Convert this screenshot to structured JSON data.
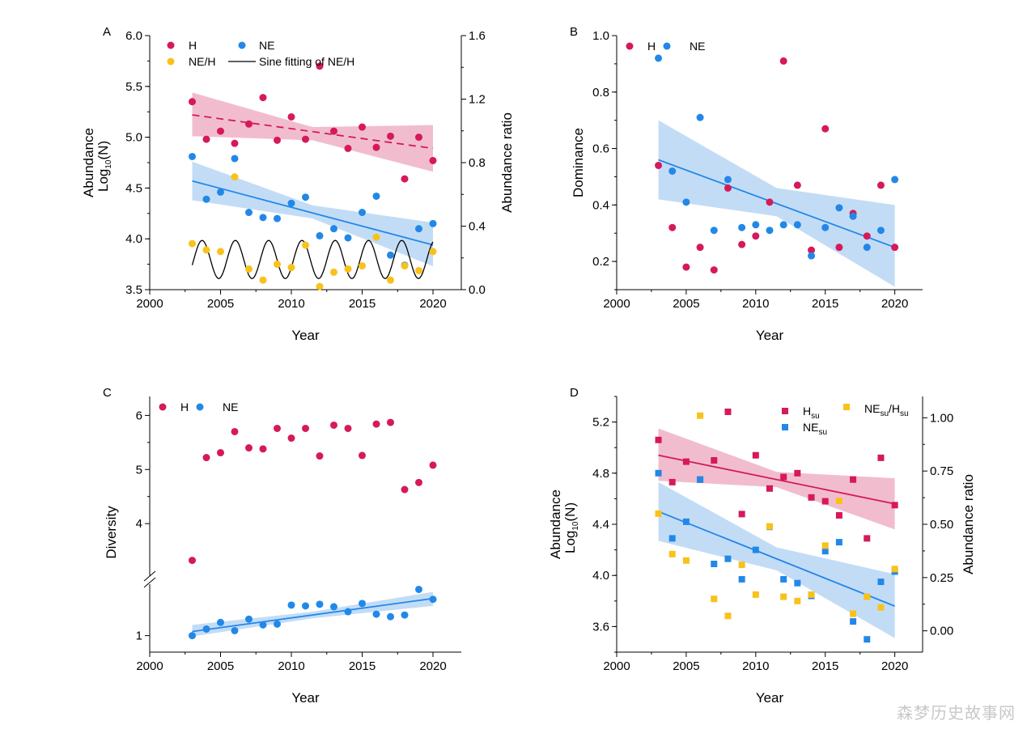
{
  "colors": {
    "H": "#d6195b",
    "NE": "#2288e8",
    "ratio": "#f8c21a",
    "H_band": "#eeb1c6",
    "NE_band": "#b8d6f4",
    "sine": "#000000"
  },
  "watermark": "森梦历史故事网",
  "chart_data": [
    {
      "id": "A",
      "type": "scatter",
      "panel_label": "A",
      "xlabel": "Year",
      "ylabel": "Abundance",
      "ylabel2": "Log10(N)",
      "y2label": "Abundance ratio",
      "xlim": [
        2000,
        2022
      ],
      "ylim": [
        3.5,
        6.0
      ],
      "y2lim": [
        0.0,
        1.6
      ],
      "xticks": [
        2000,
        2005,
        2010,
        2015,
        2020
      ],
      "yticks": [
        "3.5",
        "4.0",
        "4.5",
        "5.0",
        "5.5",
        "6.0"
      ],
      "y2ticks": [
        "0.0",
        "0.4",
        "0.8",
        "1.2",
        "1.6"
      ],
      "legend": [
        "H",
        "NE",
        "NE/H",
        "Sine fitting of NE/H"
      ],
      "series": [
        {
          "name": "H",
          "axis": "left",
          "marker": "circle",
          "color": "#d6195b",
          "x": [
            2003,
            2004,
            2005,
            2006,
            2007,
            2008,
            2009,
            2010,
            2011,
            2012,
            2013,
            2014,
            2015,
            2016,
            2017,
            2018,
            2019,
            2020
          ],
          "y": [
            5.35,
            4.98,
            5.06,
            4.94,
            5.13,
            5.39,
            4.97,
            5.2,
            4.98,
            5.7,
            5.06,
            4.89,
            5.1,
            4.9,
            5.01,
            4.59,
            5.0,
            4.77
          ]
        },
        {
          "name": "NE",
          "axis": "left",
          "marker": "circle",
          "color": "#2288e8",
          "x": [
            2003,
            2004,
            2005,
            2006,
            2007,
            2008,
            2009,
            2010,
            2011,
            2012,
            2013,
            2014,
            2015,
            2016,
            2017,
            2018,
            2019,
            2020
          ],
          "y": [
            4.81,
            4.39,
            4.46,
            4.79,
            4.26,
            4.21,
            4.2,
            4.35,
            4.41,
            4.03,
            4.1,
            4.01,
            4.26,
            4.42,
            3.84,
            3.74,
            4.1,
            4.15
          ]
        },
        {
          "name": "NE/H",
          "axis": "right",
          "marker": "circle",
          "color": "#f8c21a",
          "x": [
            2003,
            2004,
            2005,
            2006,
            2007,
            2008,
            2009,
            2010,
            2011,
            2012,
            2013,
            2014,
            2015,
            2016,
            2017,
            2018,
            2019,
            2020
          ],
          "y": [
            0.29,
            0.25,
            0.24,
            0.71,
            0.13,
            0.06,
            0.16,
            0.14,
            0.28,
            0.02,
            0.11,
            0.13,
            0.15,
            0.33,
            0.06,
            0.15,
            0.12,
            0.24
          ]
        }
      ],
      "fits": [
        {
          "name": "H",
          "axis": "left",
          "style": "dashed",
          "color": "#d6195b",
          "x": [
            2003,
            2020
          ],
          "y": [
            5.22,
            4.89
          ],
          "band": {
            "x": [
              2003,
              2011.5,
              2020
            ],
            "lower": [
              5.01,
              4.97,
              4.66
            ],
            "upper": [
              5.44,
              5.1,
              5.12
            ]
          }
        },
        {
          "name": "NE",
          "axis": "left",
          "style": "solid",
          "color": "#2288e8",
          "x": [
            2003,
            2020
          ],
          "y": [
            4.57,
            3.94
          ],
          "band": {
            "x": [
              2003,
              2011.5,
              2020
            ],
            "lower": [
              4.38,
              4.2,
              3.73
            ],
            "upper": [
              4.76,
              4.33,
              4.16
            ]
          }
        },
        {
          "name": "Sine fitting of NE/H",
          "axis": "right",
          "style": "solid",
          "color": "#000000",
          "model": "y = 0.19 + 0.12*sin(2*pi*(x-2003)/2.35 - 0.3)",
          "x": [
            2003,
            2020
          ]
        }
      ]
    },
    {
      "id": "B",
      "type": "scatter",
      "panel_label": "B",
      "xlabel": "Year",
      "ylabel": "Dominance",
      "xlim": [
        2000,
        2022
      ],
      "ylim": [
        0.1,
        1.0
      ],
      "xticks": [
        2000,
        2005,
        2010,
        2015,
        2020
      ],
      "yticks": [
        "0.2",
        "0.4",
        "0.6",
        "0.8",
        "1.0"
      ],
      "legend": [
        "H",
        "NE"
      ],
      "series": [
        {
          "name": "H",
          "marker": "circle",
          "color": "#d6195b",
          "x": [
            2003,
            2004,
            2005,
            2006,
            2007,
            2008,
            2009,
            2010,
            2011,
            2012,
            2013,
            2014,
            2015,
            2016,
            2017,
            2018,
            2019,
            2020
          ],
          "y": [
            0.54,
            0.32,
            0.18,
            0.25,
            0.17,
            0.46,
            0.26,
            0.29,
            0.41,
            0.91,
            0.47,
            0.24,
            0.67,
            0.25,
            0.37,
            0.29,
            0.47,
            0.25
          ]
        },
        {
          "name": "NE",
          "marker": "circle",
          "color": "#2288e8",
          "x": [
            2003,
            2004,
            2005,
            2006,
            2007,
            2008,
            2009,
            2010,
            2011,
            2012,
            2013,
            2014,
            2015,
            2016,
            2017,
            2018,
            2019,
            2020
          ],
          "y": [
            0.92,
            0.52,
            0.41,
            0.71,
            0.31,
            0.49,
            0.32,
            0.33,
            0.31,
            0.33,
            0.33,
            0.22,
            0.32,
            0.39,
            0.36,
            0.25,
            0.31,
            0.49
          ]
        }
      ],
      "fits": [
        {
          "name": "NE",
          "style": "solid",
          "color": "#2288e8",
          "x": [
            2003,
            2020
          ],
          "y": [
            0.56,
            0.25
          ],
          "band": {
            "x": [
              2003,
              2011.5,
              2020
            ],
            "lower": [
              0.42,
              0.36,
              0.11
            ],
            "upper": [
              0.7,
              0.46,
              0.4
            ]
          }
        }
      ]
    },
    {
      "id": "C",
      "type": "scatter",
      "panel_label": "C",
      "xlabel": "Year",
      "ylabel": "Diversity",
      "y_axis_break": true,
      "xlim": [
        2000,
        2022
      ],
      "xticks": [
        2000,
        2005,
        2010,
        2015,
        2020
      ],
      "yticks": [
        "1",
        "4",
        "5",
        "6"
      ],
      "legend": [
        "H",
        "NE"
      ],
      "series": [
        {
          "name": "H",
          "marker": "circle",
          "color": "#d6195b",
          "x": [
            2003,
            2004,
            2005,
            2006,
            2007,
            2008,
            2009,
            2010,
            2011,
            2012,
            2013,
            2014,
            2015,
            2016,
            2017,
            2018,
            2019,
            2020
          ],
          "y": [
            3.32,
            5.22,
            5.31,
            5.7,
            5.4,
            5.38,
            5.76,
            5.58,
            5.76,
            5.25,
            5.82,
            5.76,
            5.26,
            5.84,
            5.87,
            4.63,
            4.76,
            5.08
          ]
        },
        {
          "name": "NE",
          "marker": "circle",
          "color": "#2288e8",
          "x": [
            2003,
            2004,
            2005,
            2006,
            2007,
            2008,
            2009,
            2010,
            2011,
            2012,
            2013,
            2014,
            2015,
            2016,
            2017,
            2018,
            2019,
            2020
          ],
          "y": [
            1.0,
            1.08,
            1.16,
            1.06,
            1.2,
            1.13,
            1.14,
            1.37,
            1.36,
            1.38,
            1.35,
            1.29,
            1.39,
            1.26,
            1.23,
            1.25,
            1.56,
            1.44
          ]
        }
      ],
      "fits": [
        {
          "name": "NE",
          "style": "solid",
          "color": "#2288e8",
          "x": [
            2003,
            2020
          ],
          "y": [
            1.05,
            1.45
          ],
          "band": {
            "x": [
              2003,
              2011.5,
              2020
            ],
            "lower": [
              0.99,
              1.21,
              1.36
            ],
            "upper": [
              1.13,
              1.29,
              1.53
            ]
          }
        }
      ]
    },
    {
      "id": "D",
      "type": "scatter",
      "panel_label": "D",
      "xlabel": "Year",
      "ylabel": "Abundance",
      "ylabel2": "Log10(N)",
      "y2label": "Abundance ratio",
      "xlim": [
        2000,
        2022
      ],
      "ylim": [
        3.4,
        5.4
      ],
      "y2lim": [
        -0.1,
        1.1
      ],
      "xticks": [
        2000,
        2005,
        2010,
        2015,
        2020
      ],
      "yticks": [
        "3.6",
        "4.0",
        "4.4",
        "4.8",
        "5.2"
      ],
      "y2ticks": [
        "0.00",
        "0.25",
        "0.50",
        "0.75",
        "1.00"
      ],
      "legend": [
        "Hsu",
        "NEsu/Hsu",
        "NEsu"
      ],
      "series": [
        {
          "name": "Hsu",
          "axis": "left",
          "marker": "square",
          "color": "#d6195b",
          "x": [
            2003,
            2004,
            2005,
            2006,
            2007,
            2008,
            2009,
            2010,
            2011,
            2012,
            2013,
            2014,
            2015,
            2016,
            2017,
            2018,
            2019,
            2020
          ],
          "y": [
            5.06,
            4.73,
            4.89,
            4.75,
            4.9,
            5.28,
            4.48,
            4.94,
            4.68,
            4.77,
            4.8,
            4.61,
            4.58,
            4.47,
            4.75,
            4.29,
            4.92,
            4.55
          ]
        },
        {
          "name": "NEsu",
          "axis": "left",
          "marker": "square",
          "color": "#2288e8",
          "x": [
            2003,
            2004,
            2005,
            2006,
            2007,
            2008,
            2009,
            2010,
            2011,
            2012,
            2013,
            2014,
            2015,
            2016,
            2017,
            2018,
            2019,
            2020
          ],
          "y": [
            4.8,
            4.29,
            4.42,
            4.75,
            4.09,
            4.13,
            3.97,
            4.2,
            4.38,
            3.97,
            3.94,
            3.84,
            4.19,
            4.26,
            3.64,
            3.5,
            3.95,
            4.03
          ]
        },
        {
          "name": "NEsu/Hsu",
          "axis": "right",
          "marker": "square",
          "color": "#f8c21a",
          "x": [
            2003,
            2004,
            2005,
            2006,
            2007,
            2008,
            2009,
            2010,
            2011,
            2012,
            2013,
            2014,
            2015,
            2016,
            2017,
            2018,
            2019,
            2020
          ],
          "y": [
            0.55,
            0.36,
            0.33,
            1.01,
            0.15,
            0.07,
            0.31,
            0.17,
            0.49,
            0.16,
            0.14,
            0.17,
            0.4,
            0.61,
            0.08,
            0.16,
            0.11,
            0.29
          ]
        }
      ],
      "fits": [
        {
          "name": "Hsu",
          "axis": "left",
          "style": "solid",
          "color": "#d6195b",
          "x": [
            2003,
            2020
          ],
          "y": [
            4.94,
            4.56
          ],
          "band": {
            "x": [
              2003,
              2011.5,
              2020
            ],
            "lower": [
              4.74,
              4.69,
              4.36
            ],
            "upper": [
              5.15,
              4.81,
              4.76
            ]
          }
        },
        {
          "name": "NEsu",
          "axis": "left",
          "style": "solid",
          "color": "#2288e8",
          "x": [
            2003,
            2020
          ],
          "y": [
            4.5,
            3.76
          ],
          "band": {
            "x": [
              2003,
              2011.5,
              2020
            ],
            "lower": [
              4.27,
              4.04,
              3.51
            ],
            "upper": [
              4.73,
              4.22,
              4.01
            ]
          }
        }
      ]
    }
  ]
}
